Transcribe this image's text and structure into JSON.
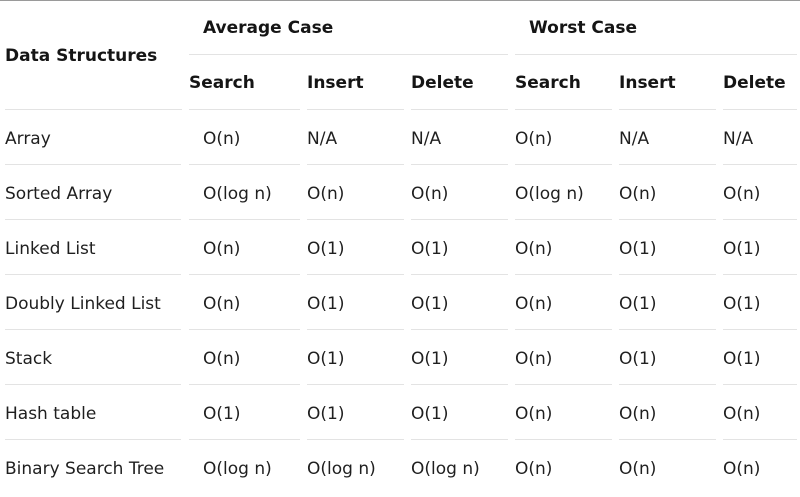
{
  "table": {
    "row_header_title": "Data Structures",
    "group_headers": [
      "Average Case",
      "Worst Case"
    ],
    "sub_headers": [
      "Search",
      "Insert",
      "Delete",
      "Search",
      "Insert",
      "Delete"
    ],
    "rows": [
      {
        "name": "Array",
        "cells": [
          "O(n)",
          "N/A",
          "N/A",
          "O(n)",
          "N/A",
          "N/A"
        ]
      },
      {
        "name": "Sorted Array",
        "cells": [
          "O(log n)",
          "O(n)",
          "O(n)",
          "O(log n)",
          "O(n)",
          "O(n)"
        ]
      },
      {
        "name": "Linked List",
        "cells": [
          "O(n)",
          "O(1)",
          "O(1)",
          "O(n)",
          "O(1)",
          "O(1)"
        ]
      },
      {
        "name": "Doubly Linked List",
        "cells": [
          "O(n)",
          "O(1)",
          "O(1)",
          "O(n)",
          "O(1)",
          "O(1)"
        ]
      },
      {
        "name": "Stack",
        "cells": [
          "O(n)",
          "O(1)",
          "O(1)",
          "O(n)",
          "O(1)",
          "O(1)"
        ]
      },
      {
        "name": "Hash table",
        "cells": [
          "O(1)",
          "O(1)",
          "O(1)",
          "O(n)",
          "O(n)",
          "O(n)"
        ]
      },
      {
        "name": "Binary Search Tree",
        "cells": [
          "O(log n)",
          "O(log n)",
          "O(log n)",
          "O(n)",
          "O(n)",
          "O(n)"
        ]
      }
    ]
  }
}
